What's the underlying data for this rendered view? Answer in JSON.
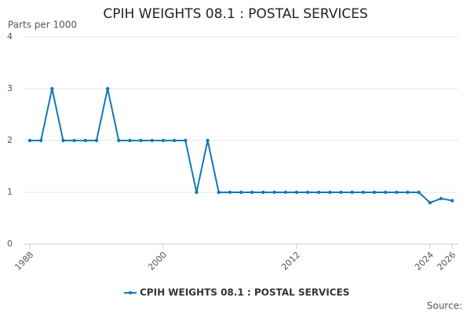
{
  "chart_data": {
    "type": "line",
    "title": "CPIH WEIGHTS 08.1 : POSTAL SERVICES",
    "y_label": "Parts per 1000",
    "source": "Source:",
    "x": [
      1988,
      1989,
      1990,
      1991,
      1992,
      1993,
      1994,
      1995,
      1996,
      1997,
      1998,
      1999,
      2000,
      2001,
      2002,
      2003,
      2004,
      2005,
      2006,
      2007,
      2008,
      2009,
      2010,
      2011,
      2012,
      2013,
      2014,
      2015,
      2016,
      2017,
      2018,
      2019,
      2020,
      2021,
      2022,
      2023,
      2024,
      2025,
      2026
    ],
    "series": [
      {
        "name": "CPIH WEIGHTS 08.1 : POSTAL SERVICES",
        "color": "#0f7ab8",
        "values": [
          2,
          2,
          3,
          2,
          2,
          2,
          2,
          3,
          2,
          2,
          2,
          2,
          2,
          2,
          2,
          1,
          2,
          1,
          1,
          1,
          1,
          1,
          1,
          1,
          1,
          1,
          1,
          1,
          1,
          1,
          1,
          1,
          1,
          1,
          1,
          1,
          0.8,
          0.88,
          0.84
        ]
      }
    ],
    "xlim": [
      1988,
      2026
    ],
    "xticks": [
      1988,
      2000,
      2012,
      2024,
      2026
    ],
    "ylim": [
      0,
      4
    ],
    "yticks": [
      0,
      1,
      2,
      3,
      4
    ],
    "grid": true
  }
}
